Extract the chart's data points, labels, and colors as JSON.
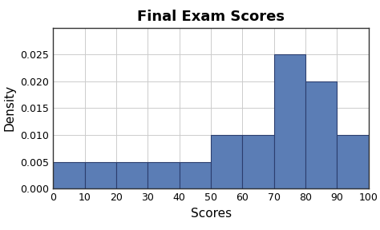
{
  "title": "Final Exam Scores",
  "xlabel": "Scores",
  "ylabel": "Density",
  "bin_edges": [
    0,
    10,
    20,
    30,
    40,
    50,
    60,
    70,
    80,
    90,
    100
  ],
  "densities": [
    0.005,
    0.005,
    0.005,
    0.005,
    0.005,
    0.01,
    0.01,
    0.025,
    0.02,
    0.01
  ],
  "bar_color": "#5b7db5",
  "bar_edgecolor": "#2c3e6e",
  "xlim": [
    0,
    100
  ],
  "ylim": [
    0,
    0.03
  ],
  "xticks": [
    0,
    10,
    20,
    30,
    40,
    50,
    60,
    70,
    80,
    90,
    100
  ],
  "yticks": [
    0,
    0.005,
    0.01,
    0.015,
    0.02,
    0.025
  ],
  "title_fontsize": 13,
  "label_fontsize": 11,
  "tick_fontsize": 9,
  "background_color": "#ffffff",
  "outer_background": "#ffffff",
  "spine_color": "#333333",
  "grid_color": "#cccccc"
}
